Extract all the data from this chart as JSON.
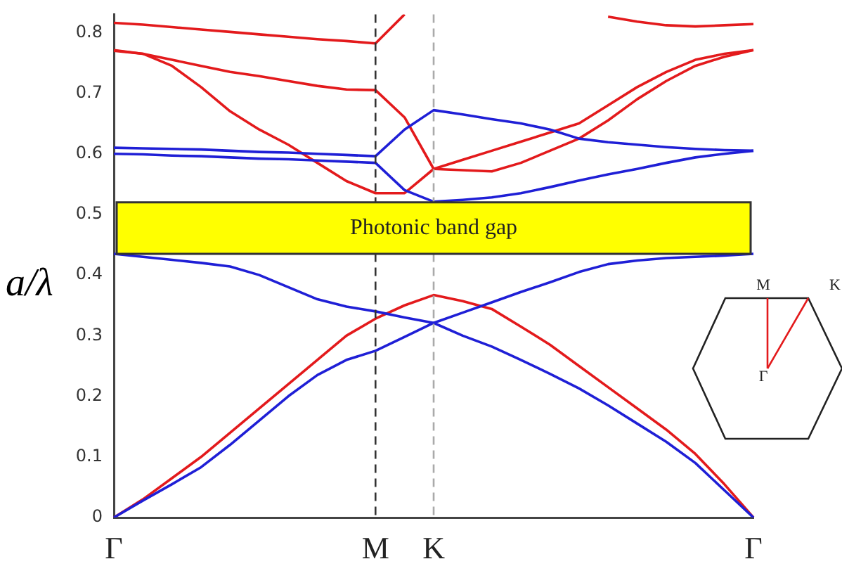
{
  "chart_data": {
    "type": "line",
    "ylabel": "a/λ",
    "ylim": [
      0,
      0.83
    ],
    "categories": [
      "Γ",
      null,
      null,
      null,
      null,
      null,
      null,
      null,
      null,
      "M",
      null,
      "K",
      null,
      null,
      null,
      null,
      null,
      null,
      null,
      null,
      null,
      null,
      "Γ"
    ],
    "yticks": [
      {
        "value": 0,
        "label": "0"
      },
      0.1,
      0.2,
      0.3,
      0.4,
      0.5,
      0.6,
      0.7,
      0.8
    ],
    "grid": false,
    "legend": false,
    "marker": "none",
    "line_style": "solid",
    "series": [
      {
        "color": "#1f1fd6",
        "values": [
          0,
          0.028,
          0.055,
          0.083,
          0.12,
          0.16,
          0.2,
          0.235,
          0.26,
          0.275,
          0.298,
          0.321,
          0.338,
          0.355,
          0.372,
          0.388,
          0.405,
          0.418,
          0.424,
          0.428,
          0.43,
          0.432,
          0.435
        ]
      },
      {
        "color": "#1f1fd6",
        "values": [
          0.435,
          0.43,
          0.425,
          0.42,
          0.414,
          0.4,
          0.38,
          0.36,
          0.348,
          0.34,
          0.33,
          0.321,
          0.3,
          0.282,
          0.26,
          0.237,
          0.213,
          0.185,
          0.155,
          0.125,
          0.09,
          0.045,
          0
        ]
      },
      {
        "color": "#e31a1c",
        "values": [
          0,
          0.03,
          0.065,
          0.1,
          0.14,
          0.18,
          0.22,
          0.26,
          0.3,
          0.328,
          0.35,
          0.367,
          0.357,
          0.344,
          0.315,
          0.285,
          0.25,
          0.215,
          0.18,
          0.145,
          0.105,
          0.055,
          0
        ]
      },
      {
        "color": "#1f1fd6",
        "values": [
          0.61,
          0.609,
          0.608,
          0.607,
          0.605,
          0.603,
          0.602,
          0.6,
          0.598,
          0.596,
          0.64,
          0.672,
          0.665,
          0.657,
          0.65,
          0.64,
          0.625,
          0.619,
          0.615,
          0.611,
          0.608,
          0.606,
          0.605
        ]
      },
      {
        "color": "#1f1fd6",
        "values": [
          0.6,
          0.599,
          0.597,
          0.596,
          0.594,
          0.592,
          0.591,
          0.589,
          0.587,
          0.585,
          0.54,
          0.521,
          0.524,
          0.528,
          0.535,
          0.545,
          0.556,
          0.566,
          0.575,
          0.585,
          0.594,
          0.6,
          0.605
        ]
      },
      {
        "color": "#e31a1c",
        "values": [
          0.771,
          0.765,
          0.745,
          0.71,
          0.67,
          0.64,
          0.615,
          0.585,
          0.555,
          0.535,
          0.535,
          0.575,
          0.59,
          0.605,
          0.62,
          0.635,
          0.65,
          0.68,
          0.71,
          0.735,
          0.755,
          0.765,
          0.771
        ]
      },
      {
        "color": "#e31a1c",
        "values": [
          0.77,
          0.765,
          0.755,
          0.745,
          0.735,
          0.728,
          0.72,
          0.712,
          0.706,
          0.705,
          0.66,
          0.575,
          0.573,
          0.571,
          0.585,
          0.605,
          0.625,
          0.655,
          0.69,
          0.72,
          0.745,
          0.76,
          0.771
        ]
      },
      {
        "color": "#e31a1c",
        "values": [
          0.816,
          0.813,
          0.809,
          0.805,
          0.801,
          0.797,
          0.793,
          0.789,
          0.786,
          0.782,
          0.83,
          null,
          null,
          null,
          null,
          null,
          null,
          null,
          null,
          null,
          null,
          null,
          null
        ]
      },
      {
        "color": "#e31a1c",
        "values": [
          null,
          null,
          null,
          null,
          null,
          null,
          null,
          null,
          null,
          null,
          null,
          null,
          null,
          null,
          null,
          null,
          null,
          0.826,
          0.818,
          0.812,
          0.81,
          0.812,
          0.814
        ]
      }
    ],
    "ref_lines": [
      {
        "axis": "x",
        "value": "M",
        "color": "#333333",
        "line_style": "dashed"
      },
      {
        "axis": "x",
        "value": "K",
        "color": "#aaaaaa",
        "line_style": "dashed"
      }
    ],
    "bands": [
      {
        "axis": "y",
        "from": 0.435,
        "to": 0.52,
        "label": "Photonic band gap",
        "color": "#ffff00"
      }
    ],
    "annotations": [
      "M",
      "K",
      "Γ"
    ]
  }
}
